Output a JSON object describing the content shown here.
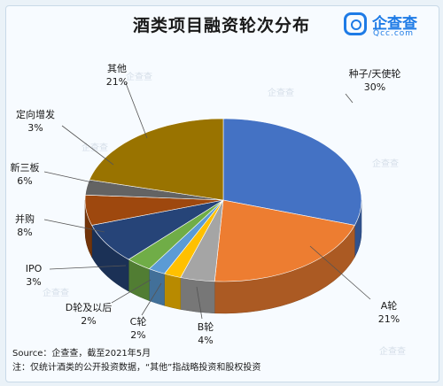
{
  "title": "酒类项目融资轮次分布",
  "logo": {
    "name": "企查查",
    "url": "Qcc.com",
    "icon": "qcc-logo-icon"
  },
  "watermark_text": "企查查",
  "chart_data": {
    "type": "pie",
    "title": "酒类项目融资轮次分布",
    "slices": [
      {
        "label": "种子/天使轮",
        "value": 30,
        "display": "30%",
        "color": "#4472c4"
      },
      {
        "label": "A轮",
        "value": 21,
        "display": "21%",
        "color": "#ed7d31"
      },
      {
        "label": "B轮",
        "value": 4,
        "display": "4%",
        "color": "#a5a5a5"
      },
      {
        "label": "C轮",
        "value": 2,
        "display": "2%",
        "color": "#ffc000"
      },
      {
        "label": "D轮及以后",
        "value": 2,
        "display": "2%",
        "color": "#5b9bd5"
      },
      {
        "label": "IPO",
        "value": 3,
        "display": "3%",
        "color": "#70ad47"
      },
      {
        "label": "并购",
        "value": 8,
        "display": "8%",
        "color": "#264478"
      },
      {
        "label": "新三板",
        "value": 6,
        "display": "6%",
        "color": "#9e480e"
      },
      {
        "label": "定向增发",
        "value": 3,
        "display": "3%",
        "color": "#636363"
      },
      {
        "label": "其他",
        "value": 21,
        "display": "21%",
        "color": "#997300"
      }
    ]
  },
  "footer": {
    "source": "Source：企查查，截至2021年5月",
    "note": "注：仅统计酒类的公开投资数据，“其他”指战略投资和股权投资"
  }
}
